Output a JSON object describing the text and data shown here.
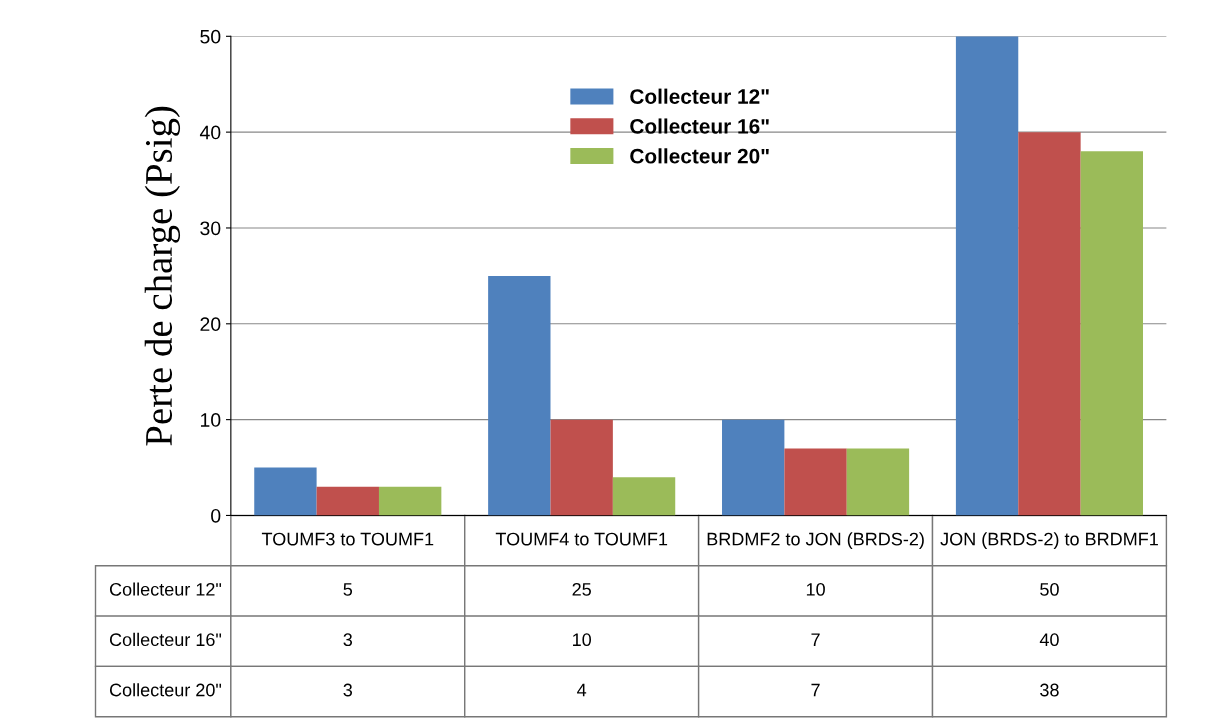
{
  "chart_data": {
    "type": "bar",
    "ylabel": "Perte de charge (Psig)",
    "categories": [
      "TOUMF3 to TOUMF1",
      "TOUMF4 to TOUMF1",
      "BRDMF2 to JON (BRDS-2)",
      "JON (BRDS-2) to BRDMF1"
    ],
    "series": [
      {
        "name": "Collecteur 12\"",
        "color": "#4f81bd",
        "values": [
          5,
          25,
          10,
          50
        ]
      },
      {
        "name": "Collecteur 16\"",
        "color": "#c0504d",
        "values": [
          3,
          10,
          7,
          40
        ]
      },
      {
        "name": "Collecteur 20\"",
        "color": "#9bbb59",
        "values": [
          3,
          4,
          7,
          38
        ]
      }
    ],
    "ylim": [
      0,
      50
    ],
    "yticks": [
      0,
      10,
      20,
      30,
      40,
      50
    ],
    "grid": "y",
    "legend": "top",
    "data_labels": true
  }
}
